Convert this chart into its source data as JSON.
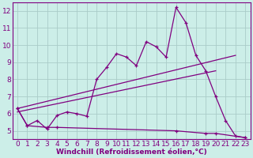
{
  "title": "",
  "xlabel": "Windchill (Refroidissement éolien,°C)",
  "ylabel": "",
  "bg_color": "#cceee8",
  "line_color": "#800080",
  "grid_color": "#aaccc8",
  "xlim": [
    -0.5,
    23.5
  ],
  "ylim": [
    4.5,
    12.5
  ],
  "xticks": [
    0,
    1,
    2,
    3,
    4,
    5,
    6,
    7,
    8,
    9,
    10,
    11,
    12,
    13,
    14,
    15,
    16,
    17,
    18,
    19,
    20,
    21,
    22,
    23
  ],
  "yticks": [
    5,
    6,
    7,
    8,
    9,
    10,
    11,
    12
  ],
  "main_x": [
    0,
    1,
    2,
    3,
    4,
    5,
    6,
    7,
    8,
    9,
    10,
    11,
    12,
    13,
    14,
    15,
    16,
    17,
    18,
    19,
    20,
    21,
    22,
    23
  ],
  "main_y": [
    6.3,
    5.3,
    5.6,
    5.1,
    5.9,
    6.1,
    6.0,
    5.85,
    8.0,
    8.7,
    9.5,
    9.3,
    8.8,
    10.2,
    9.9,
    9.3,
    12.2,
    11.3,
    9.4,
    8.5,
    7.0,
    5.6,
    4.7,
    4.6
  ],
  "trend1_x": [
    0,
    22
  ],
  "trend1_y": [
    6.3,
    9.4
  ],
  "trend2_x": [
    0,
    20
  ],
  "trend2_y": [
    6.1,
    8.5
  ],
  "flat_x": [
    0,
    1,
    3,
    4,
    16,
    19,
    20,
    23
  ],
  "flat_y": [
    6.3,
    5.3,
    5.2,
    5.2,
    5.0,
    4.85,
    4.85,
    4.6
  ],
  "font_color": "#800080",
  "xlabel_fontsize": 6.5,
  "tick_fontsize": 6.5
}
